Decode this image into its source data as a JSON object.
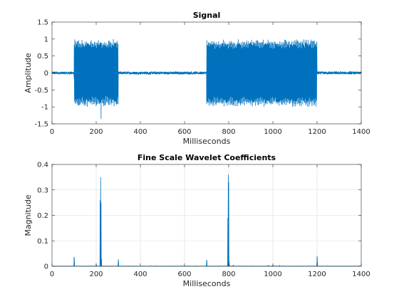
{
  "chart_data": [
    {
      "type": "line",
      "title": "Signal",
      "xlabel": "Milliseconds",
      "ylabel": "Amplitude",
      "xlim": [
        0,
        1400
      ],
      "ylim": [
        -1.5,
        1.5
      ],
      "xticks": [
        0,
        200,
        400,
        600,
        800,
        1000,
        1200,
        1400
      ],
      "yticks": [
        -1.5,
        -1,
        -0.5,
        0,
        0.5,
        1,
        1.5
      ],
      "ytick_labels": [
        "-1.5",
        "-1",
        "-0.5",
        "0",
        "0.5",
        "1",
        "1.5"
      ],
      "grid": false,
      "color": "#0072BD",
      "segments": [
        {
          "x_start": 0,
          "x_end": 100,
          "amplitude": 0.04,
          "kind": "noise"
        },
        {
          "x_start": 100,
          "x_end": 300,
          "amplitude": 1.0,
          "kind": "oscillation"
        },
        {
          "x_start": 300,
          "x_end": 700,
          "amplitude": 0.04,
          "kind": "noise"
        },
        {
          "x_start": 700,
          "x_end": 1200,
          "amplitude": 1.0,
          "kind": "oscillation"
        },
        {
          "x_start": 1200,
          "x_end": 1400,
          "amplitude": 0.04,
          "kind": "noise"
        }
      ],
      "spike": {
        "x": 222,
        "y": -1.35
      }
    },
    {
      "type": "line",
      "title": "Fine Scale Wavelet Coefficients",
      "xlabel": "Milliseconds",
      "ylabel": "Magnitude",
      "xlim": [
        0,
        1400
      ],
      "ylim": [
        0,
        0.4
      ],
      "xticks": [
        0,
        200,
        400,
        600,
        800,
        1000,
        1200,
        1400
      ],
      "yticks": [
        0,
        0.1,
        0.2,
        0.3,
        0.4
      ],
      "ytick_labels": [
        "0",
        "0.1",
        "0.2",
        "0.3",
        "0.4"
      ],
      "grid": true,
      "color": "#0072BD",
      "peaks": [
        {
          "x": 100,
          "y": 0.037
        },
        {
          "x": 101,
          "y": 0.03
        },
        {
          "x": 200,
          "y": 0.01
        },
        {
          "x": 218,
          "y": 0.26
        },
        {
          "x": 220,
          "y": 0.35
        },
        {
          "x": 222,
          "y": 0.25
        },
        {
          "x": 224,
          "y": 0.03
        },
        {
          "x": 300,
          "y": 0.027
        },
        {
          "x": 301,
          "y": 0.02
        },
        {
          "x": 700,
          "y": 0.025
        },
        {
          "x": 701,
          "y": 0.02
        },
        {
          "x": 796,
          "y": 0.19
        },
        {
          "x": 798,
          "y": 0.36
        },
        {
          "x": 800,
          "y": 0.33
        },
        {
          "x": 802,
          "y": 0.02
        },
        {
          "x": 820,
          "y": 0.005
        },
        {
          "x": 980,
          "y": 0.003
        },
        {
          "x": 1000,
          "y": 0.006
        },
        {
          "x": 1030,
          "y": 0.004
        },
        {
          "x": 1200,
          "y": 0.04
        },
        {
          "x": 1201,
          "y": 0.03
        }
      ]
    }
  ]
}
